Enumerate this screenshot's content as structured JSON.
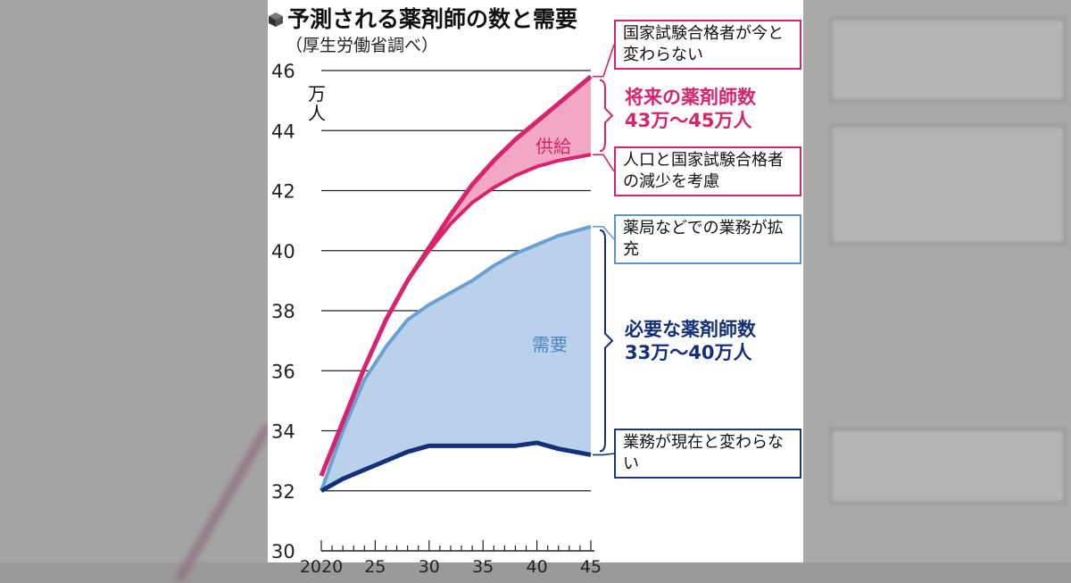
{
  "title": "予測される薬剤師の数と需要",
  "subtitle": "（厚生労働省調べ）",
  "unit_label": "万人",
  "colors": {
    "supply_line": "#d6246e",
    "supply_fill": "#f2a7c4",
    "demand_line": "#14307a",
    "demand_upper": "#6aa0d4",
    "demand_fill": "#b9d1ea"
  },
  "area_labels": {
    "supply": "供給",
    "demand": "需要"
  },
  "notes": {
    "supply_high": "国家試験合格者が今と変わらない",
    "supply_low": "人口と国家試験合格者の減少を考慮",
    "demand_high": "薬局などでの業務が拡充",
    "demand_low": "業務が現在と変わらない"
  },
  "callouts": {
    "supply": [
      "将来の薬剤師数",
      "43万～45万人"
    ],
    "demand": [
      "必要な薬剤師数",
      "33万～40万人"
    ]
  },
  "chart_data": {
    "type": "area",
    "ylabel": "万人",
    "ylim": [
      30,
      46
    ],
    "yticks": [
      30,
      32,
      34,
      36,
      38,
      40,
      42,
      44,
      46
    ],
    "xlim": [
      2020,
      2045
    ],
    "xtick_labels": [
      "2020",
      "25",
      "30",
      "35",
      "40",
      "45"
    ],
    "x": [
      2020,
      2022,
      2024,
      2026,
      2028,
      2030,
      2032,
      2034,
      2036,
      2038,
      2040,
      2042,
      2045
    ],
    "series": [
      {
        "name": "国家試験合格者が今と変わらない",
        "values": [
          32.5,
          34.3,
          36.1,
          37.7,
          39.0,
          40.1,
          41.2,
          42.2,
          43.0,
          43.7,
          44.3,
          44.9,
          45.8
        ]
      },
      {
        "name": "人口と国家試験合格者の減少を考慮",
        "values": [
          32.5,
          34.3,
          36.1,
          37.7,
          39.0,
          40.0,
          40.9,
          41.6,
          42.1,
          42.5,
          42.8,
          43.0,
          43.2
        ]
      },
      {
        "name": "薬局などでの業務が拡充",
        "values": [
          32.0,
          34.0,
          35.7,
          36.8,
          37.7,
          38.2,
          38.6,
          39.0,
          39.5,
          39.9,
          40.2,
          40.5,
          40.8
        ]
      },
      {
        "name": "業務が現在と変わらない",
        "values": [
          32.0,
          32.4,
          32.7,
          33.0,
          33.3,
          33.5,
          33.5,
          33.5,
          33.5,
          33.5,
          33.6,
          33.4,
          33.2
        ]
      }
    ]
  }
}
